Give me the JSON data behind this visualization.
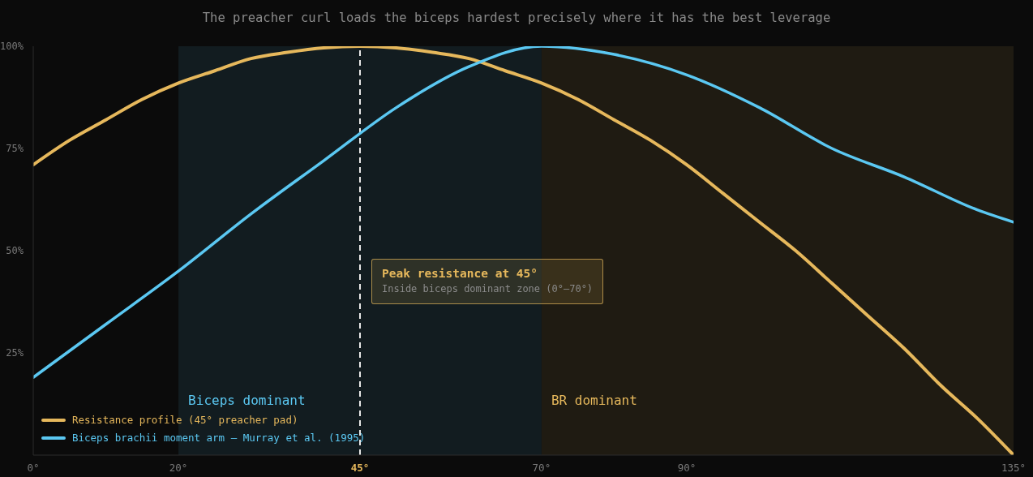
{
  "chart_data": {
    "type": "line",
    "subtitle": "The preacher curl loads the biceps hardest precisely where it has the best leverage",
    "annotations": [
      "Peak resistance at 45°",
      "Inside biceps dominant zone (0°–70°)"
    ],
    "xlim": [
      0,
      135
    ],
    "xticks": [
      {
        "value": 0,
        "label": "0°"
      },
      {
        "value": 20,
        "label": "20°"
      },
      {
        "value": 45,
        "label": "45°"
      },
      {
        "value": 70,
        "label": "70°"
      },
      {
        "value": 90,
        "label": "90°"
      },
      {
        "value": 135,
        "label": "135°"
      }
    ],
    "ylim": [
      0,
      100
    ],
    "yticks": [
      {
        "value": 25,
        "label": "25%"
      },
      {
        "value": 50,
        "label": "50%"
      },
      {
        "value": 75,
        "label": "75%"
      },
      {
        "value": 100,
        "label": "100%"
      }
    ],
    "series": [
      {
        "name": "Resistance profile (45° preacher pad)",
        "color": "#e6b85c",
        "x": [
          0,
          5,
          10,
          15,
          20,
          25,
          30,
          35,
          40,
          45,
          50,
          55,
          60,
          65,
          70,
          75,
          80,
          85,
          90,
          95,
          100,
          105,
          110,
          115,
          120,
          125,
          130,
          135
        ],
        "values": [
          71,
          77,
          82,
          87,
          91,
          94,
          97,
          98.5,
          99.6,
          100,
          99.6,
          98.5,
          97,
          94,
          91,
          87,
          82,
          77,
          71,
          64,
          57,
          50,
          42,
          34,
          26,
          17,
          9,
          0
        ]
      },
      {
        "name": "Biceps brachii moment arm — Murray et al. (1995)",
        "color": "#5bc8f2",
        "x": [
          0,
          10,
          20,
          30,
          40,
          50,
          60,
          70,
          80,
          90,
          100,
          110,
          120,
          130,
          135
        ],
        "values": [
          19,
          32,
          45,
          59,
          72,
          85,
          95,
          100,
          98,
          93,
          85,
          75,
          68,
          60,
          57
        ]
      }
    ],
    "ref_lines": [
      {
        "axis": "x",
        "value": 45,
        "color": "#e8e8e8",
        "line_style": "dashed"
      }
    ],
    "bands": [
      {
        "axis": "x",
        "from": 20,
        "to": 70,
        "label": "Biceps dominant",
        "color": "#5bc8f2"
      },
      {
        "axis": "x",
        "from": 70,
        "to": 135,
        "label": "BR dominant",
        "color": "#e6b85c"
      }
    ],
    "legend": "bottom left"
  }
}
